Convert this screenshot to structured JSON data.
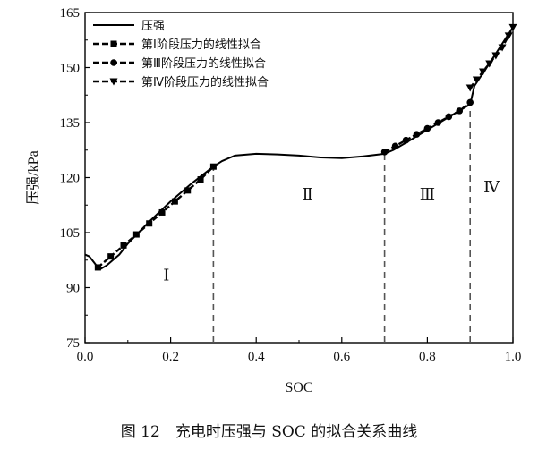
{
  "caption": "图 12　充电时压强与 SOC 的拟合关系曲线",
  "chart_data": {
    "type": "line",
    "xlabel": "SOC",
    "ylabel": "压强/kPa",
    "xlim": [
      0.0,
      1.0
    ],
    "ylim": [
      75,
      165
    ],
    "xticks": [
      "0.0",
      "0.2",
      "0.4",
      "0.6",
      "0.8",
      "1.0"
    ],
    "yticks": [
      "75",
      "90",
      "105",
      "120",
      "135",
      "150",
      "165"
    ],
    "legend_position": "top-left",
    "series": [
      {
        "name": "压强",
        "style": "solid",
        "x": [
          0.0,
          0.01,
          0.02,
          0.03,
          0.035,
          0.05,
          0.08,
          0.1,
          0.15,
          0.2,
          0.25,
          0.3,
          0.32,
          0.35,
          0.4,
          0.45,
          0.5,
          0.55,
          0.6,
          0.65,
          0.7,
          0.72,
          0.75,
          0.8,
          0.85,
          0.9,
          0.91,
          0.95,
          1.0
        ],
        "y": [
          99,
          98.5,
          97,
          95.5,
          95,
          96,
          99,
          102,
          108,
          113.5,
          118.5,
          123,
          124.5,
          126,
          126.5,
          126.3,
          126,
          125.5,
          125.3,
          125.8,
          126.5,
          127.5,
          129.5,
          133,
          136.5,
          140,
          145,
          152,
          161
        ]
      },
      {
        "name": "第Ⅰ阶段压力的线性拟合",
        "style": "dashed-square",
        "x": [
          0.03,
          0.06,
          0.09,
          0.12,
          0.15,
          0.18,
          0.21,
          0.24,
          0.27,
          0.3
        ],
        "y": [
          95.5,
          98.5,
          101.5,
          104.5,
          107.5,
          110.5,
          113.5,
          116.5,
          119.5,
          123
        ]
      },
      {
        "name": "第Ⅲ阶段压力的线性拟合",
        "style": "dashed-circle",
        "x": [
          0.7,
          0.725,
          0.75,
          0.775,
          0.8,
          0.825,
          0.85,
          0.875,
          0.9
        ],
        "y": [
          127,
          128.6,
          130.2,
          131.8,
          133.4,
          135,
          136.6,
          138.2,
          140.5
        ]
      },
      {
        "name": "第Ⅳ阶段压力的线性拟合",
        "style": "dashed-triangle",
        "x": [
          0.9,
          0.915,
          0.93,
          0.945,
          0.96,
          0.975,
          0.99,
          1.0
        ],
        "y": [
          144.5,
          146.7,
          148.9,
          151.1,
          153.3,
          155.5,
          158.7,
          161
        ]
      }
    ],
    "boundaries": [
      0.3,
      0.7,
      0.9
    ],
    "regions": [
      {
        "label": "Ⅰ",
        "x": 0.19,
        "y": 92
      },
      {
        "label": "Ⅱ",
        "x": 0.52,
        "y": 114
      },
      {
        "label": "Ⅲ",
        "x": 0.8,
        "y": 114
      },
      {
        "label": "Ⅳ",
        "x": 0.95,
        "y": 116
      }
    ],
    "line_color": "#000000",
    "boundary_color": "#555555"
  }
}
